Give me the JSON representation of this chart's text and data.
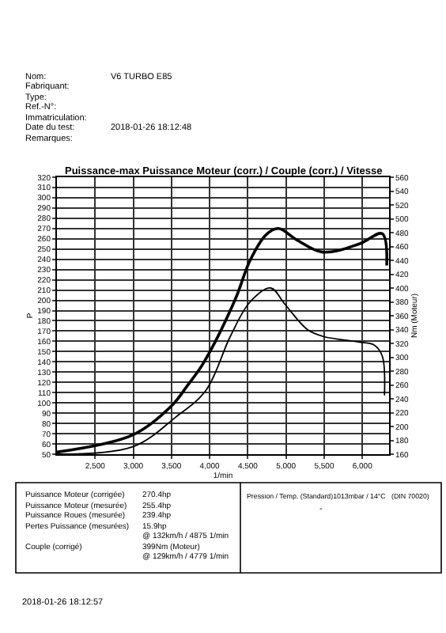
{
  "chart_data": {
    "type": "line",
    "title": "Puissance-max Puissance Moteur (corr.) / Couple (corr.) / Vitesse",
    "xlabel": "1/min",
    "ylabel": "P",
    "y2label": "Nm (Moteur)",
    "x": [
      2000,
      3000,
      3500,
      3720,
      3920,
      4330,
      4530,
      4740,
      4900,
      5140,
      5480,
      5960,
      6260,
      6320
    ],
    "series": [
      {
        "color": "#000000",
        "values": [
          52,
          69,
          97,
          118,
          139,
          200,
          239,
          264,
          270,
          259,
          247,
          255,
          265,
          234
        ]
      },
      {
        "color": "#000000",
        "axis": "y2",
        "x": [
          2000,
          3000,
          3550,
          3950,
          4270,
          4530,
          4800,
          4990,
          5280,
          5490,
          5960,
          6150,
          6260,
          6290
        ],
        "values": [
          160,
          171,
          213,
          252,
          330,
          380,
          400,
          376,
          340,
          330,
          322,
          318,
          302,
          245
        ]
      }
    ],
    "xlim": [
      2000,
      6350
    ],
    "xticks": [
      {
        "value": 2500,
        "label": "2,500"
      },
      {
        "value": 3000,
        "label": "3,000"
      },
      {
        "value": 3500,
        "label": "3,500"
      },
      {
        "value": 4000,
        "label": "4,000"
      },
      {
        "value": 4500,
        "label": "4,500"
      },
      {
        "value": 5000,
        "label": "5,000"
      },
      {
        "value": 5500,
        "label": "5,500"
      },
      {
        "value": 6000,
        "label": "6,000"
      }
    ],
    "ylim": [
      50,
      320
    ],
    "yticks": [
      50,
      60,
      70,
      80,
      90,
      100,
      110,
      120,
      130,
      140,
      150,
      160,
      170,
      180,
      190,
      200,
      210,
      220,
      230,
      240,
      250,
      260,
      270,
      280,
      290,
      300,
      310,
      320
    ],
    "y2lim": [
      160,
      560
    ],
    "y2ticks": [
      160,
      180,
      200,
      220,
      240,
      260,
      280,
      300,
      320,
      340,
      360,
      380,
      400,
      420,
      440,
      460,
      480,
      500,
      520,
      540,
      560
    ],
    "grid": true,
    "marker": "none",
    "line_style": "solid",
    "annotations": [
      "Nom:",
      "V6 TURBO E85",
      "Fabriquant:",
      "Type:",
      "Ref.-N°:",
      "Immatriculation:",
      "Date du test:",
      "2018-01-26 18:12:48",
      "Remarques:",
      "Puissance Moteur (corrigée)",
      "270.4hp",
      "Puissance Moteur (mesurée)",
      "255.4hp",
      "Puissance Roues (mesurée)",
      "239.4hp",
      "Pertes Puissance (mesurées)",
      "15.9hp",
      "@ 132km/h / 4875 1/min",
      "Couple (corrigé)",
      "399Nm (Moteur)",
      "@ 129km/h / 4779 1/min",
      "Pression / Temp. (Standard)1013mbar / 14°C   (DIN 70020)",
      "-",
      "2018-01-26 18:12:57"
    ]
  }
}
